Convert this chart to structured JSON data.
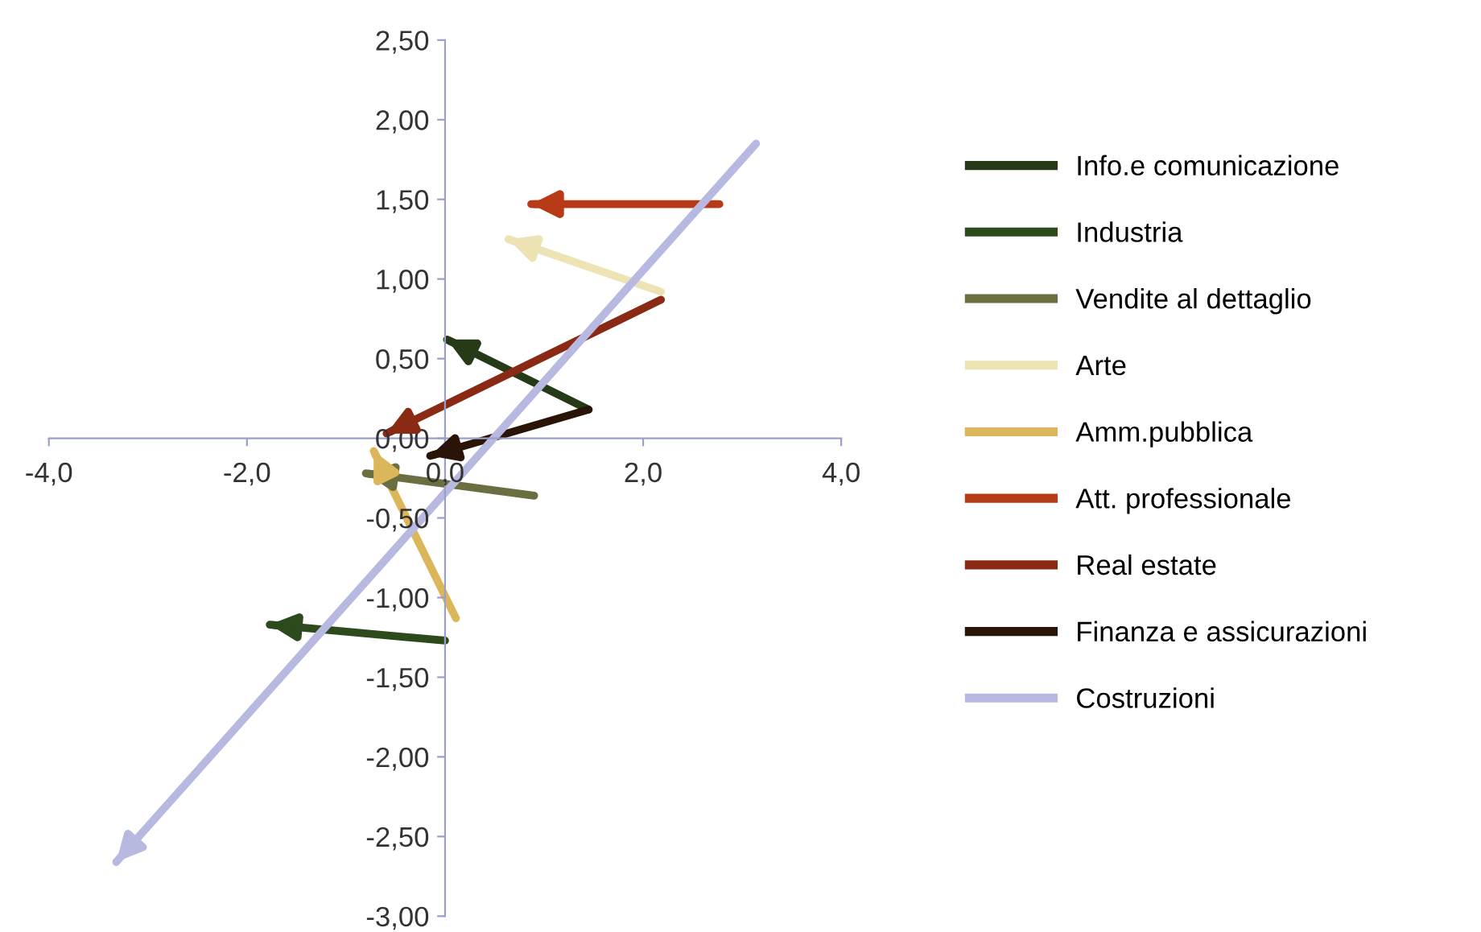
{
  "chart_data": {
    "type": "line",
    "series": [
      {
        "name": "Info.e comunicazione",
        "color": "#263a18",
        "x": [
          1.45,
          0.02
        ],
        "values": [
          0.18,
          0.62
        ]
      },
      {
        "name": "Industria",
        "color": "#2d4a1c",
        "x": [
          0.0,
          -1.77
        ],
        "values": [
          -1.27,
          -1.17
        ]
      },
      {
        "name": "Vendite al dettaglio",
        "color": "#6b6e40",
        "x": [
          0.9,
          -0.8
        ],
        "values": [
          -0.36,
          -0.22
        ]
      },
      {
        "name": "Arte",
        "color": "#ede3b5",
        "x": [
          2.18,
          0.64
        ],
        "values": [
          0.92,
          1.25
        ]
      },
      {
        "name": "Amm.pubblica",
        "color": "#dcb65a",
        "x": [
          0.11,
          -0.72
        ],
        "values": [
          -1.13,
          -0.08
        ]
      },
      {
        "name": "Att. professionale",
        "color": "#b83a17",
        "x": [
          2.77,
          0.87
        ],
        "values": [
          1.47,
          1.47
        ]
      },
      {
        "name": "Real estate",
        "color": "#8a2a14",
        "x": [
          2.18,
          -0.59
        ],
        "values": [
          0.87,
          0.03
        ]
      },
      {
        "name": "Finanza e assicurazioni",
        "color": "#2a1408",
        "x": [
          1.45,
          -0.15
        ],
        "values": [
          0.18,
          -0.11
        ]
      },
      {
        "name": "Costruzioni",
        "color": "#b7b9e0",
        "x": [
          3.14,
          -3.32
        ],
        "values": [
          1.85,
          -2.66
        ]
      }
    ],
    "xlim": [
      -4.0,
      4.0
    ],
    "xticks": [
      {
        "value": -4,
        "label": "-4,0"
      },
      {
        "value": -2,
        "label": "-2,0"
      },
      {
        "value": 0,
        "label": "0,0"
      },
      {
        "value": 2,
        "label": "2,0"
      },
      {
        "value": 4,
        "label": "4,0"
      }
    ],
    "ylim": [
      -3.0,
      2.5
    ],
    "yticks": [
      {
        "value": -3,
        "label": "-3,00"
      },
      {
        "value": -2.5,
        "label": "-2,50"
      },
      {
        "value": -2,
        "label": "-2,00"
      },
      {
        "value": -1.5,
        "label": "-1,50"
      },
      {
        "value": -1,
        "label": "-1,00"
      },
      {
        "value": -0.5,
        "label": "-0,50"
      },
      {
        "value": 0,
        "label": "0,00"
      },
      {
        "value": 0.5,
        "label": "0,50"
      },
      {
        "value": 1,
        "label": "1,00"
      },
      {
        "value": 1.5,
        "label": "1,50"
      },
      {
        "value": 2,
        "label": "2,00"
      },
      {
        "value": 2.5,
        "label": "2,50"
      }
    ],
    "grid": false,
    "legend": "right"
  }
}
